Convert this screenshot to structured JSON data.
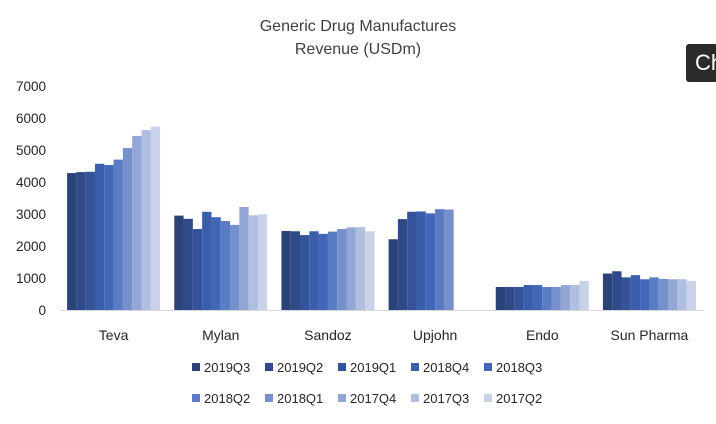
{
  "overlay_label": "Ch",
  "chart_data": {
    "type": "bar",
    "title": [
      "Generic Drug Manufactures",
      "Revenue (USDm)"
    ],
    "xlabel": "",
    "ylabel": "",
    "ylim": [
      0,
      7000
    ],
    "yticks": [
      "0",
      "1000",
      "2000",
      "3000",
      "4000",
      "5000",
      "6000",
      "7000"
    ],
    "grid": false,
    "legend_position": "bottom",
    "categories": [
      "Teva",
      "Mylan",
      "Sandoz",
      "Upjohn",
      "Endo",
      "Sun Pharma"
    ],
    "series": [
      {
        "name": "2019Q3",
        "color": "#2c4379",
        "values": [
          4280,
          2950,
          2470,
          2210,
          720,
          1140
        ]
      },
      {
        "name": "2019Q2",
        "color": "#2f4a88",
        "values": [
          4310,
          2850,
          2460,
          2840,
          720,
          1210
        ]
      },
      {
        "name": "2019Q1",
        "color": "#34539a",
        "values": [
          4320,
          2530,
          2340,
          3070,
          720,
          1020
        ]
      },
      {
        "name": "2018Q4",
        "color": "#3a5dac",
        "values": [
          4570,
          3070,
          2460,
          3080,
          780,
          1090
        ]
      },
      {
        "name": "2018Q3",
        "color": "#4266b8",
        "values": [
          4530,
          2900,
          2380,
          3020,
          780,
          960
        ]
      },
      {
        "name": "2018Q2",
        "color": "#5a7cc4",
        "values": [
          4700,
          2780,
          2450,
          3150,
          720,
          1020
        ]
      },
      {
        "name": "2018Q1",
        "color": "#7690cc",
        "values": [
          5060,
          2660,
          2530,
          3140,
          720,
          970
        ]
      },
      {
        "name": "2017Q4",
        "color": "#93a6d5",
        "values": [
          5440,
          3220,
          2580,
          null,
          780,
          960
        ]
      },
      {
        "name": "2017Q3",
        "color": "#b0bee0",
        "values": [
          5620,
          2960,
          2590,
          null,
          780,
          960
        ]
      },
      {
        "name": "2017Q2",
        "color": "#cad2ea",
        "values": [
          5730,
          2990,
          2460,
          null,
          910,
          910
        ]
      }
    ]
  }
}
